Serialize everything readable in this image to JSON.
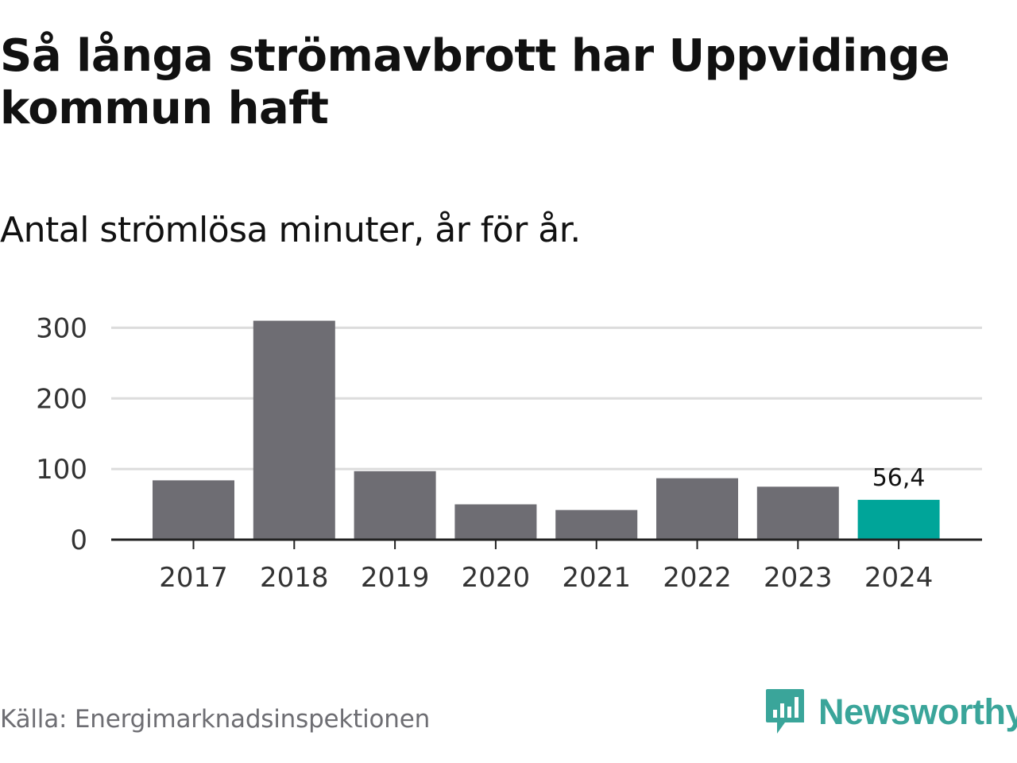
{
  "header": {
    "title": "Så långa strömavbrott har Uppvidinge kommun haft",
    "subtitle": "Antal strömlösa minuter, år för år."
  },
  "footer": {
    "source": "Källa: Energimarknadsinspektionen",
    "brand": "Newsworthy"
  },
  "colors": {
    "bar": "#6e6d73",
    "highlight": "#00a599",
    "grid": "#dcdcdc",
    "axis": "#222222",
    "brand": "#3aa59a"
  },
  "chart_data": {
    "type": "bar",
    "title": "Så långa strömavbrott har Uppvidinge kommun haft",
    "subtitle": "Antal strömlösa minuter, år för år.",
    "xlabel": "",
    "ylabel": "",
    "categories": [
      "2017",
      "2018",
      "2019",
      "2020",
      "2021",
      "2022",
      "2023",
      "2024"
    ],
    "values": [
      84,
      310,
      97,
      50,
      42,
      87,
      75,
      56.4
    ],
    "highlight_index": 7,
    "data_labels": [
      {
        "index": 7,
        "text": "56,4"
      }
    ],
    "ylim": [
      0,
      310
    ],
    "yticks": [
      0,
      100,
      200,
      300
    ],
    "grid": true,
    "legend": "none"
  }
}
